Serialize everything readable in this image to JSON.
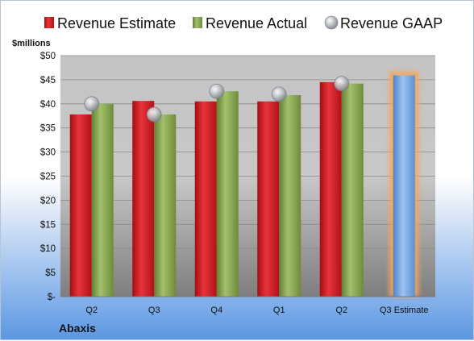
{
  "colors": {
    "estimate": "#c6151b",
    "actual": "#7e9d47",
    "gaap": "#b9bcc4",
    "projected": "#6d9fde",
    "glow": "#f5a55a"
  },
  "legend": {
    "estimate": "Revenue Estimate",
    "actual": "Revenue Actual",
    "gaap": "Revenue GAAP"
  },
  "unit_label": "$millions",
  "company": "Abaxis",
  "chart_data": {
    "type": "bar",
    "title": "",
    "xlabel": "",
    "ylabel": "$millions",
    "ylim": [
      0,
      50
    ],
    "y_ticks": [
      "$-",
      "$5",
      "$10",
      "$15",
      "$20",
      "$25",
      "$30",
      "$35",
      "$40",
      "$45",
      "$50"
    ],
    "categories": [
      "Q2",
      "Q3",
      "Q4",
      "Q1",
      "Q2",
      "Q3 Estimate"
    ],
    "series": [
      {
        "name": "Revenue Estimate",
        "values": [
          37.8,
          40.6,
          40.5,
          40.5,
          44.5,
          null
        ]
      },
      {
        "name": "Revenue Actual",
        "values": [
          40.0,
          37.8,
          42.6,
          41.8,
          44.2,
          null
        ]
      },
      {
        "name": "Revenue GAAP",
        "values": [
          40.0,
          37.8,
          42.6,
          42.0,
          44.2,
          null
        ]
      }
    ],
    "projected": {
      "category": "Q3 Estimate",
      "value": 45.9
    },
    "grid": true,
    "legend_position": "top"
  }
}
